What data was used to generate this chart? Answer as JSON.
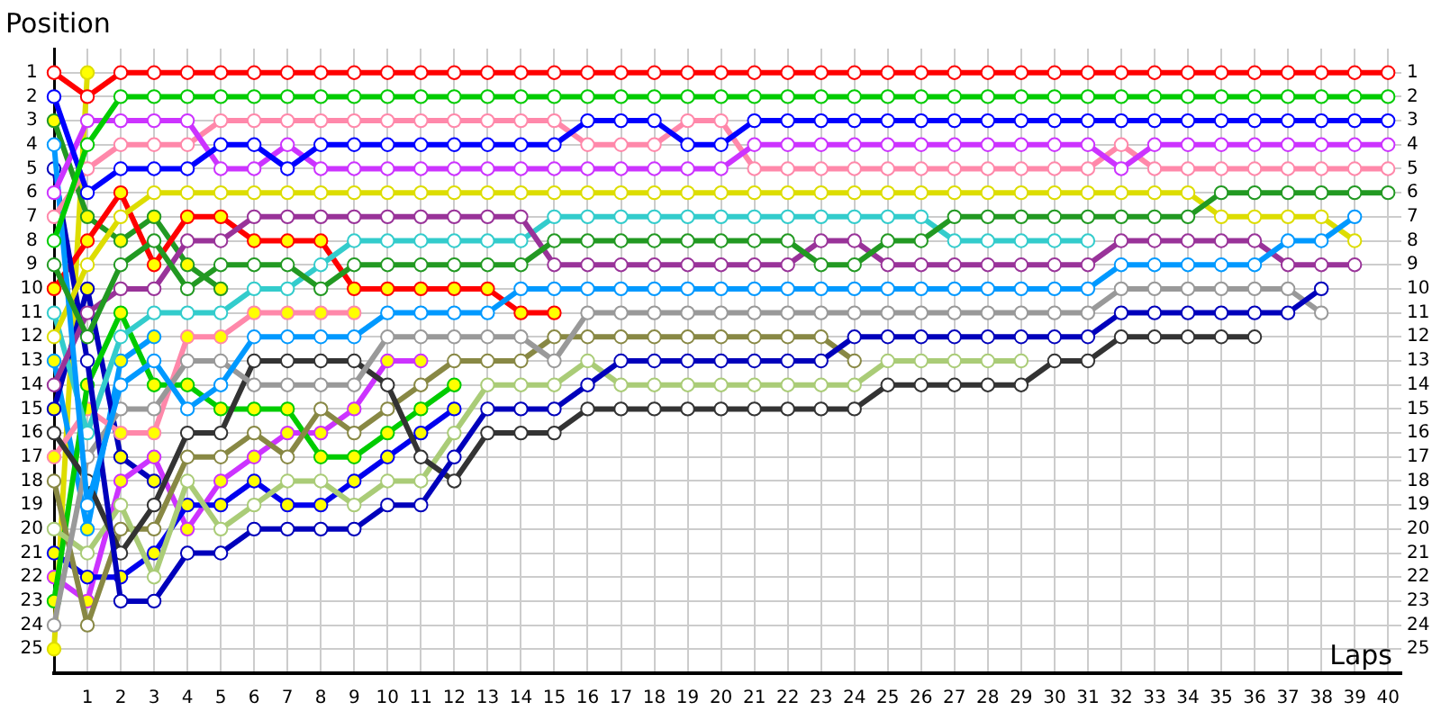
{
  "chart_data": {
    "type": "line",
    "xlabel": "Laps",
    "ylabel": "Position",
    "x": [
      0,
      1,
      2,
      3,
      4,
      5,
      6,
      7,
      8,
      9,
      10,
      11,
      12,
      13,
      14,
      15,
      16,
      17,
      18,
      19,
      20,
      21,
      22,
      23,
      24,
      25,
      26,
      27,
      28,
      29,
      30,
      31,
      32,
      33,
      34,
      35,
      36,
      37,
      38,
      39,
      40
    ],
    "xlim": [
      0,
      40.4
    ],
    "xticks": [
      1,
      2,
      3,
      4,
      5,
      6,
      7,
      8,
      9,
      10,
      11,
      12,
      13,
      14,
      15,
      16,
      17,
      18,
      19,
      20,
      21,
      22,
      23,
      24,
      25,
      26,
      27,
      28,
      29,
      30,
      31,
      32,
      33,
      34,
      35,
      36,
      37,
      38,
      39,
      40
    ],
    "ylim": [
      26,
      0
    ],
    "yticks": [
      1,
      2,
      3,
      4,
      5,
      6,
      7,
      8,
      9,
      10,
      11,
      12,
      13,
      14,
      15,
      16,
      17,
      18,
      19,
      20,
      21,
      22,
      23,
      24,
      25
    ],
    "y2lim": [
      26,
      0
    ],
    "y2ticks": [
      1,
      2,
      3,
      4,
      5,
      6,
      7,
      8,
      9,
      10,
      11,
      12,
      13,
      14,
      15,
      16,
      17,
      18,
      19,
      20,
      21,
      22,
      23,
      24,
      25
    ],
    "grid": true,
    "marker": "circle",
    "line_style": "solid",
    "series": [
      {
        "color": "#ff0000",
        "values": [
          1,
          2,
          1,
          1,
          1,
          1,
          1,
          1,
          1,
          1,
          1,
          1,
          1,
          1,
          1,
          1,
          1,
          1,
          1,
          1,
          1,
          1,
          1,
          1,
          1,
          1,
          1,
          1,
          1,
          1,
          1,
          1,
          1,
          1,
          1,
          1,
          1,
          1,
          1,
          1,
          1
        ]
      },
      {
        "color": "#00cc00",
        "values": [
          8,
          4,
          2,
          2,
          2,
          2,
          2,
          2,
          2,
          2,
          2,
          2,
          2,
          2,
          2,
          2,
          2,
          2,
          2,
          2,
          2,
          2,
          2,
          2,
          2,
          2,
          2,
          2,
          2,
          2,
          2,
          2,
          2,
          2,
          2,
          2,
          2,
          2,
          2,
          2,
          2
        ]
      },
      {
        "color": "#0000ff",
        "values": [
          2,
          6,
          5,
          5,
          5,
          4,
          4,
          5,
          4,
          4,
          4,
          4,
          4,
          4,
          4,
          4,
          3,
          3,
          3,
          4,
          4,
          3,
          3,
          3,
          3,
          3,
          3,
          3,
          3,
          3,
          3,
          3,
          3,
          3,
          3,
          3,
          3,
          3,
          3,
          3,
          3
        ]
      },
      {
        "color": "#cc33ff",
        "values": [
          6,
          3,
          3,
          3,
          3,
          5,
          5,
          4,
          5,
          5,
          5,
          5,
          5,
          5,
          5,
          5,
          5,
          5,
          5,
          5,
          5,
          4,
          4,
          4,
          4,
          4,
          4,
          4,
          4,
          4,
          4,
          4,
          5,
          4,
          4,
          4,
          4,
          4,
          4,
          4,
          4
        ]
      },
      {
        "color": "#ff88aa",
        "values": [
          7,
          5,
          4,
          4,
          4,
          3,
          3,
          3,
          3,
          3,
          3,
          3,
          3,
          3,
          3,
          3,
          4,
          4,
          4,
          3,
          3,
          5,
          5,
          5,
          5,
          5,
          5,
          5,
          5,
          5,
          5,
          5,
          4,
          5,
          5,
          5,
          5,
          5,
          5,
          5,
          5
        ]
      },
      {
        "color": "#229922",
        "values": [
          9,
          12,
          9,
          8,
          10,
          9,
          9,
          9,
          10,
          9,
          9,
          9,
          9,
          9,
          9,
          8,
          8,
          8,
          8,
          8,
          8,
          8,
          8,
          9,
          9,
          8,
          8,
          7,
          7,
          7,
          7,
          7,
          7,
          7,
          7,
          6,
          6,
          6,
          6,
          6,
          6
        ]
      },
      {
        "color": "#0099ff",
        "values": [
          4,
          19,
          14,
          13,
          15,
          14,
          12,
          12,
          12,
          12,
          11,
          11,
          11,
          11,
          10,
          10,
          10,
          10,
          10,
          10,
          10,
          10,
          10,
          10,
          10,
          10,
          10,
          10,
          10,
          10,
          10,
          10,
          9,
          9,
          9,
          9,
          9,
          8,
          8,
          7,
          null
        ]
      },
      {
        "color": "#dddd00",
        "values": [
          12,
          9,
          7,
          6,
          6,
          6,
          6,
          6,
          6,
          6,
          6,
          6,
          6,
          6,
          6,
          6,
          6,
          6,
          6,
          6,
          6,
          6,
          6,
          6,
          6,
          6,
          6,
          6,
          6,
          6,
          6,
          6,
          6,
          6,
          6,
          7,
          7,
          7,
          7,
          8,
          null
        ]
      },
      {
        "color": "#993399",
        "values": [
          14,
          11,
          10,
          10,
          8,
          8,
          7,
          7,
          7,
          7,
          7,
          7,
          7,
          7,
          7,
          9,
          9,
          9,
          9,
          9,
          9,
          9,
          9,
          8,
          8,
          9,
          9,
          9,
          9,
          9,
          9,
          9,
          8,
          8,
          8,
          8,
          8,
          9,
          9,
          9,
          null
        ]
      },
      {
        "color": "#0000bb",
        "values": [
          5,
          13,
          23,
          23,
          21,
          21,
          20,
          20,
          20,
          20,
          19,
          19,
          17,
          15,
          15,
          15,
          14,
          13,
          13,
          13,
          13,
          13,
          13,
          13,
          12,
          12,
          12,
          12,
          12,
          12,
          12,
          12,
          11,
          11,
          11,
          11,
          11,
          11,
          10,
          null,
          null
        ]
      },
      {
        "color": "#999999",
        "values": [
          24,
          17,
          15,
          15,
          13,
          13,
          14,
          14,
          14,
          14,
          12,
          12,
          12,
          12,
          12,
          13,
          11,
          11,
          11,
          11,
          11,
          11,
          11,
          11,
          11,
          11,
          11,
          11,
          11,
          11,
          11,
          11,
          10,
          10,
          10,
          10,
          10,
          10,
          11,
          null,
          null
        ]
      },
      {
        "color": "#333333",
        "values": [
          16,
          18,
          21,
          19,
          16,
          16,
          13,
          13,
          13,
          13,
          14,
          17,
          18,
          16,
          16,
          16,
          15,
          15,
          15,
          15,
          15,
          15,
          15,
          15,
          15,
          14,
          14,
          14,
          14,
          14,
          13,
          13,
          12,
          12,
          12,
          12,
          12,
          null,
          null,
          null,
          null
        ]
      },
      {
        "color": "#aacc77",
        "values": [
          20,
          21,
          19,
          22,
          18,
          20,
          19,
          18,
          18,
          19,
          18,
          18,
          16,
          14,
          14,
          14,
          13,
          14,
          14,
          14,
          14,
          14,
          14,
          14,
          14,
          13,
          13,
          13,
          13,
          13,
          null,
          null,
          null,
          null,
          null,
          null,
          null,
          null,
          null,
          null,
          null
        ]
      },
      {
        "color": "#888844",
        "values": [
          18,
          24,
          20,
          20,
          17,
          17,
          16,
          17,
          15,
          16,
          15,
          14,
          13,
          13,
          13,
          12,
          12,
          12,
          12,
          12,
          12,
          12,
          12,
          12,
          13,
          null,
          null,
          null,
          null,
          null,
          null,
          null,
          null,
          null,
          null,
          null,
          null,
          null,
          null,
          null,
          null
        ]
      },
      {
        "color": "#33cccc",
        "values": [
          11,
          16,
          12,
          11,
          11,
          11,
          10,
          10,
          9,
          8,
          8,
          8,
          8,
          8,
          8,
          7,
          7,
          7,
          7,
          7,
          7,
          7,
          7,
          7,
          7,
          7,
          7,
          8,
          8,
          8,
          8,
          8,
          null,
          null,
          null,
          null,
          null,
          null,
          null,
          null,
          null
        ]
      },
      {
        "color": "#ff0000",
        "values": [
          10,
          8,
          6,
          9,
          7,
          7,
          8,
          8,
          8,
          10,
          10,
          10,
          10,
          10,
          11,
          11,
          null,
          null,
          null,
          null,
          null,
          null,
          null,
          null,
          null,
          null,
          null,
          null,
          null,
          null,
          null,
          null,
          null,
          null,
          null,
          null,
          null,
          null,
          null,
          null,
          null
        ],
        "colors": [
          "#ffff00",
          "#ffff00",
          "#ffff00",
          "#ffff00",
          "#ffff00",
          "#ffff00",
          "#ffff00",
          "#ffff00",
          "#ffff00",
          "#ffff00",
          "#ffff00",
          "#ffff00",
          "#ffff00",
          "#ffff00",
          "#ffff00",
          "#ffff00",
          null,
          null,
          null,
          null,
          null,
          null,
          null,
          null,
          null,
          null,
          null,
          null,
          null,
          null,
          null,
          null,
          null,
          null,
          null,
          null,
          null,
          null,
          null,
          null,
          null
        ]
      },
      {
        "color": "#00cc00",
        "values": [
          23,
          14,
          11,
          14,
          14,
          15,
          15,
          15,
          17,
          17,
          16,
          15,
          14,
          null,
          null,
          null,
          null,
          null,
          null,
          null,
          null,
          null,
          null,
          null,
          null,
          null,
          null,
          null,
          null,
          null,
          null,
          null,
          null,
          null,
          null,
          null,
          null,
          null,
          null,
          null,
          null
        ],
        "colors": [
          "#ffff00",
          "#ffff00",
          "#ffff00",
          "#ffff00",
          "#ffff00",
          "#ffff00",
          "#ffff00",
          "#ffff00",
          "#ffff00",
          "#ffff00",
          "#ffff00",
          "#ffff00",
          "#ffff00",
          null,
          null,
          null,
          null,
          null,
          null,
          null,
          null,
          null,
          null,
          null,
          null,
          null,
          null,
          null,
          null,
          null,
          null,
          null,
          null,
          null,
          null,
          null,
          null,
          null,
          null,
          null,
          null
        ]
      },
      {
        "color": "#0000ee",
        "values": [
          21,
          22,
          22,
          21,
          19,
          19,
          18,
          19,
          19,
          18,
          17,
          16,
          15,
          null,
          null,
          null,
          null,
          null,
          null,
          null,
          null,
          null,
          null,
          null,
          null,
          null,
          null,
          null,
          null,
          null,
          null,
          null,
          null,
          null,
          null,
          null,
          null,
          null,
          null,
          null,
          null
        ],
        "colors": [
          "#ffff00",
          "#ffff00",
          "#ffff00",
          "#ffff00",
          "#ffff00",
          "#ffff00",
          "#ffff00",
          "#ffff00",
          "#ffff00",
          "#ffff00",
          "#ffff00",
          "#ffff00",
          "#ffff00",
          null,
          null,
          null,
          null,
          null,
          null,
          null,
          null,
          null,
          null,
          null,
          null,
          null,
          null,
          null,
          null,
          null,
          null,
          null,
          null,
          null,
          null,
          null,
          null,
          null,
          null,
          null,
          null
        ]
      },
      {
        "color": "#cc33ff",
        "values": [
          22,
          23,
          18,
          17,
          20,
          18,
          17,
          16,
          16,
          15,
          13,
          13,
          null,
          null,
          null,
          null,
          null,
          null,
          null,
          null,
          null,
          null,
          null,
          null,
          null,
          null,
          null,
          null,
          null,
          null,
          null,
          null,
          null,
          null,
          null,
          null,
          null,
          null,
          null,
          null,
          null
        ],
        "colors": [
          "#ffff00",
          "#ffff00",
          "#ffff00",
          "#ffff00",
          "#ffff00",
          "#ffff00",
          "#ffff00",
          "#ffff00",
          "#ffff00",
          "#ffff00",
          "#ffff00",
          "#ffff00",
          null,
          null,
          null,
          null,
          null,
          null,
          null,
          null,
          null,
          null,
          null,
          null,
          null,
          null,
          null,
          null,
          null,
          null,
          null,
          null,
          null,
          null,
          null,
          null,
          null,
          null,
          null,
          null,
          null
        ]
      },
      {
        "color": "#ff88aa",
        "values": [
          17,
          15,
          16,
          16,
          12,
          12,
          11,
          11,
          11,
          11,
          null,
          null,
          null,
          null,
          null,
          null,
          null,
          null,
          null,
          null,
          null,
          null,
          null,
          null,
          null,
          null,
          null,
          null,
          null,
          null,
          null,
          null,
          null,
          null,
          null,
          null,
          null,
          null,
          null,
          null,
          null
        ],
        "colors": [
          "#ffff00",
          "#ffff00",
          "#ffff00",
          "#ffff00",
          "#ffff00",
          "#ffff00",
          "#ffff00",
          "#ffff00",
          "#ffff00",
          "#ffff00",
          null,
          null,
          null,
          null,
          null,
          null,
          null,
          null,
          null,
          null,
          null,
          null,
          null,
          null,
          null,
          null,
          null,
          null,
          null,
          null,
          null,
          null,
          null,
          null,
          null,
          null,
          null,
          null,
          null,
          null,
          null
        ]
      },
      {
        "color": "#229922",
        "values": [
          3,
          7,
          8,
          7,
          9,
          10,
          null,
          null,
          null,
          null,
          null,
          null,
          null,
          null,
          null,
          null,
          null,
          null,
          null,
          null,
          null,
          null,
          null,
          null,
          null,
          null,
          null,
          null,
          null,
          null,
          null,
          null,
          null,
          null,
          null,
          null,
          null,
          null,
          null,
          null,
          null
        ],
        "colors": [
          "#ffff00",
          "#ffff00",
          "#ffff00",
          "#ffff00",
          "#ffff00",
          "#ffff00",
          null,
          null,
          null,
          null,
          null,
          null,
          null,
          null,
          null,
          null,
          null,
          null,
          null,
          null,
          null,
          null,
          null,
          null,
          null,
          null,
          null,
          null,
          null,
          null,
          null,
          null,
          null,
          null,
          null,
          null,
          null,
          null,
          null,
          null,
          null
        ]
      },
      {
        "color": "#0000bb",
        "values": [
          15,
          10,
          17,
          18,
          null,
          null,
          null,
          null,
          null,
          null,
          null,
          null,
          null,
          null,
          null,
          null,
          null,
          null,
          null,
          null,
          null,
          null,
          null,
          null,
          null,
          null,
          null,
          null,
          null,
          null,
          null,
          null,
          null,
          null,
          null,
          null,
          null,
          null,
          null,
          null,
          null
        ],
        "colors": [
          "#ffff00",
          "#ffff00",
          "#ffff00",
          "#ffff00",
          null,
          null,
          null,
          null,
          null,
          null,
          null,
          null,
          null,
          null,
          null,
          null,
          null,
          null,
          null,
          null,
          null,
          null,
          null,
          null,
          null,
          null,
          null,
          null,
          null,
          null,
          null,
          null,
          null,
          null,
          null,
          null,
          null,
          null,
          null,
          null,
          null
        ]
      },
      {
        "color": "#0099ff",
        "values": [
          13,
          20,
          13,
          12,
          null,
          null,
          null,
          null,
          null,
          null,
          null,
          null,
          null,
          null,
          null,
          null,
          null,
          null,
          null,
          null,
          null,
          null,
          null,
          null,
          null,
          null,
          null,
          null,
          null,
          null,
          null,
          null,
          null,
          null,
          null,
          null,
          null,
          null,
          null,
          null,
          null
        ],
        "colors": [
          "#ffff00",
          "#ffff00",
          "#ffff00",
          "#ffff00",
          null,
          null,
          null,
          null,
          null,
          null,
          null,
          null,
          null,
          null,
          null,
          null,
          null,
          null,
          null,
          null,
          null,
          null,
          null,
          null,
          null,
          null,
          null,
          null,
          null,
          null,
          null,
          null,
          null,
          null,
          null,
          null,
          null,
          null,
          null,
          null,
          null
        ]
      },
      {
        "color": "#dddd00",
        "values": [
          25,
          1,
          null,
          null,
          null,
          null,
          null,
          null,
          null,
          null,
          null,
          null,
          null,
          null,
          null,
          null,
          null,
          null,
          null,
          null,
          null,
          null,
          null,
          null,
          null,
          null,
          null,
          null,
          null,
          null,
          null,
          null,
          null,
          null,
          null,
          null,
          null,
          null,
          null,
          null,
          null
        ],
        "colors": [
          "#ffff00",
          "#ffff00",
          null,
          null,
          null,
          null,
          null,
          null,
          null,
          null,
          null,
          null,
          null,
          null,
          null,
          null,
          null,
          null,
          null,
          null,
          null,
          null,
          null,
          null,
          null,
          null,
          null,
          null,
          null,
          null,
          null,
          null,
          null,
          null,
          null,
          null,
          null,
          null,
          null,
          null,
          null
        ]
      }
    ]
  }
}
